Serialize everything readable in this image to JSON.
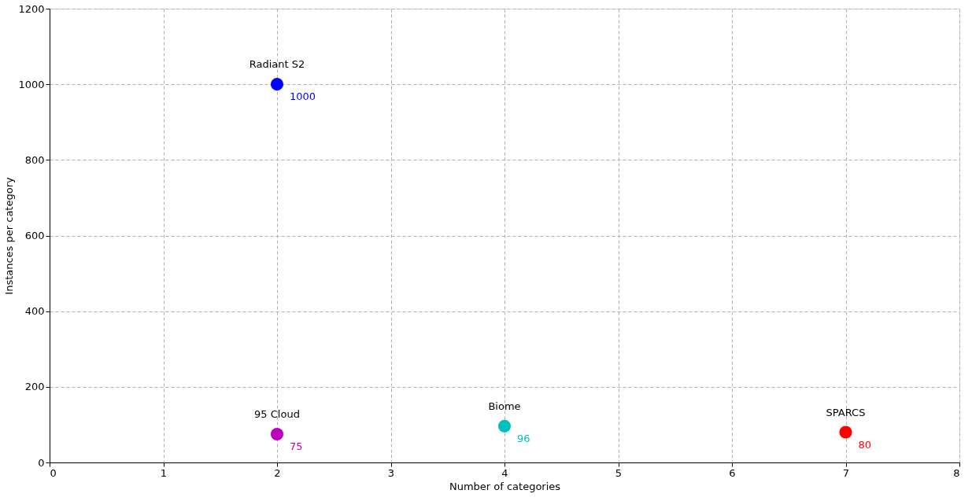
{
  "chart_data": {
    "type": "scatter",
    "xlabel": "Number of categories",
    "ylabel": "Instances per category",
    "xlim": [
      0,
      8
    ],
    "ylim": [
      0,
      1200
    ],
    "xticks": [
      0,
      1,
      2,
      3,
      4,
      5,
      6,
      7,
      8
    ],
    "yticks": [
      0,
      200,
      400,
      600,
      800,
      1000,
      1200
    ],
    "grid": true,
    "marker": "circle",
    "data_labels": true,
    "series": [
      {
        "name": "Radiant S2",
        "color": "#0000ff",
        "x": [
          2
        ],
        "values": [
          1000
        ]
      },
      {
        "name": "95 Cloud",
        "color": "#bf00bf",
        "x": [
          2
        ],
        "values": [
          75
        ]
      },
      {
        "name": "Biome",
        "color": "#00bfbf",
        "x": [
          4
        ],
        "values": [
          96
        ]
      },
      {
        "name": "SPARCS",
        "color": "#ff0000",
        "x": [
          7
        ],
        "values": [
          80
        ]
      }
    ]
  }
}
